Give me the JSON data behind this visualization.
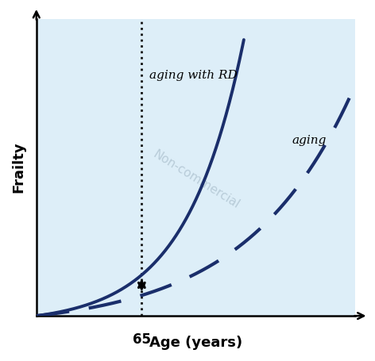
{
  "background_color": "#ddeef8",
  "curve_color": "#1a2e6b",
  "axis_color": "#000000",
  "dotted_line_color": "#111111",
  "arrow_color": "#000000",
  "watermark_text": "Non-commercial",
  "watermark_color": "#9ab0bf",
  "label_aging_rd": "aging with RD",
  "label_aging": "aging",
  "xlabel": "Age (years)",
  "ylabel": "Frailty",
  "age_65_label": "65",
  "figsize": [
    4.72,
    4.55
  ],
  "dpi": 100
}
